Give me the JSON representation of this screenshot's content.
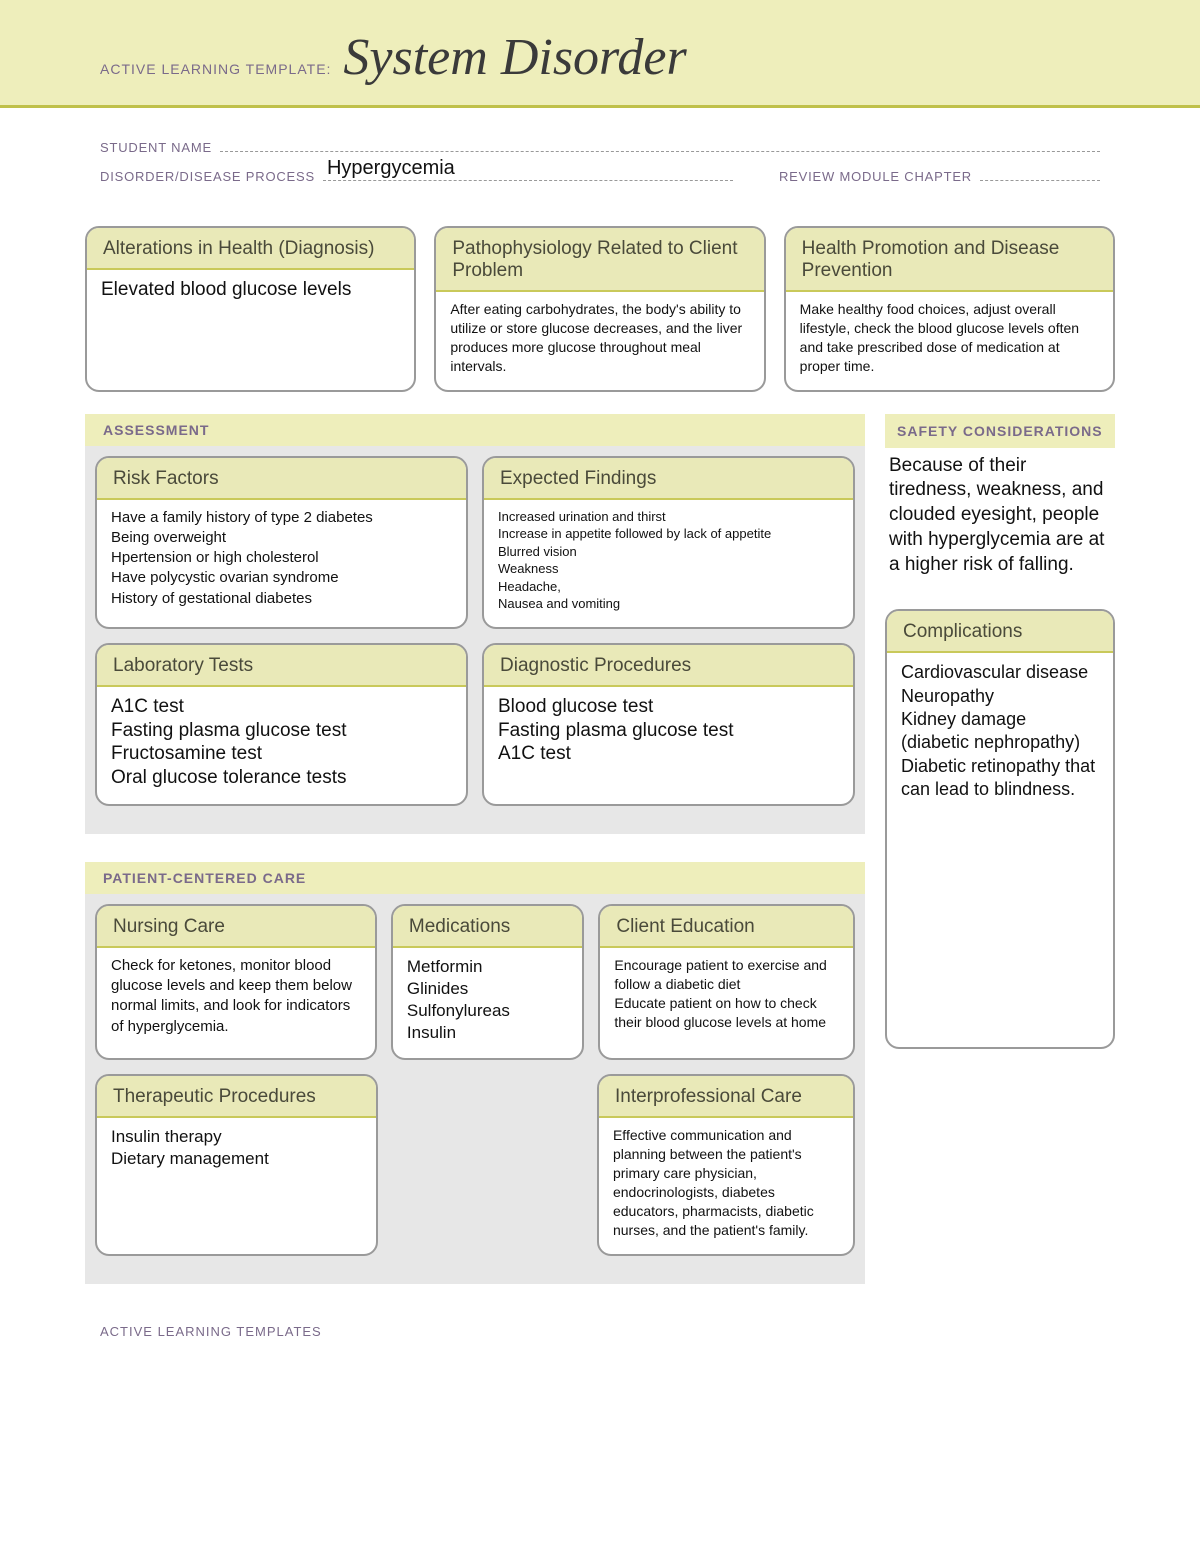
{
  "colors": {
    "band": "#eeeebb",
    "band_rule": "#bfc04a",
    "box_head": "#e9e9b8",
    "box_head_rule": "#c9c95a",
    "section_bg": "#e7e7e7",
    "label_text": "#7a6a8a",
    "border": "#9a9a9a"
  },
  "header": {
    "prefix": "ACTIVE LEARNING TEMPLATE:",
    "title": "System Disorder"
  },
  "meta": {
    "student_label": "STUDENT NAME",
    "student_value": "",
    "process_label": "DISORDER/DISEASE PROCESS",
    "process_value": "Hypergycemia",
    "review_label": "REVIEW MODULE CHAPTER",
    "review_value": ""
  },
  "top": {
    "alterations": {
      "title": "Alterations in Health (Diagnosis)",
      "body": "Elevated blood glucose levels"
    },
    "patho": {
      "title": "Pathophysiology Related to Client Problem",
      "body": "After eating carbohydrates, the body's ability to utilize or store glucose decreases, and the liver produces more glucose throughout meal intervals."
    },
    "promo": {
      "title": "Health Promotion and Disease Prevention",
      "body": "Make healthy food choices, adjust overall lifestyle, check the blood glucose levels often and take prescribed dose of medication at proper time."
    }
  },
  "assessment": {
    "label": "ASSESSMENT",
    "risk": {
      "title": "Risk Factors",
      "body": "Have a family history of type 2 diabetes\nBeing overweight\nHpertension or high cholesterol\nHave polycystic ovarian syndrome\nHistory of gestational diabetes"
    },
    "expected": {
      "title": "Expected Findings",
      "body": "Increased urination and thirst\nIncrease in appetite followed by lack of appetite\nBlurred vision\nWeakness\nHeadache,\nNausea and vomiting"
    },
    "lab": {
      "title": "Laboratory Tests",
      "body": "A1C test\nFasting plasma glucose test\nFructosamine test\nOral glucose tolerance tests"
    },
    "diag": {
      "title": "Diagnostic Procedures",
      "body": "Blood glucose test\nFasting plasma glucose test\nA1C test"
    }
  },
  "safety": {
    "label": "SAFETY CONSIDERATIONS",
    "body": "Because of their tiredness, weakness, and clouded eyesight, people with hyperglycemia are at a higher risk of falling."
  },
  "care": {
    "label": "PATIENT-CENTERED CARE",
    "nursing": {
      "title": "Nursing Care",
      "body": "Check for ketones, monitor blood glucose levels and keep them below normal limits, and look for indicators of hyperglycemia."
    },
    "meds": {
      "title": "Medications",
      "body": "Metformin\nGlinides\nSulfonylureas\nInsulin"
    },
    "edu": {
      "title": "Client Education",
      "body": "Encourage patient to exercise and follow a diabetic diet\nEducate patient on how to check their blood glucose levels at home"
    },
    "ther": {
      "title": "Therapeutic Procedures",
      "body": "Insulin therapy\nDietary management"
    },
    "inter": {
      "title": "Interprofessional Care",
      "body": "Effective communication and planning between the patient's primary care physician, endocrinologists, diabetes educators, pharmacists, diabetic nurses, and the patient's family."
    }
  },
  "complications": {
    "title": "Complications",
    "body": "Cardiovascular disease\nNeuropathy\nKidney damage (diabetic nephropathy)\nDiabetic retinopathy that can lead to blindness."
  },
  "footer": "ACTIVE LEARNING TEMPLATES"
}
